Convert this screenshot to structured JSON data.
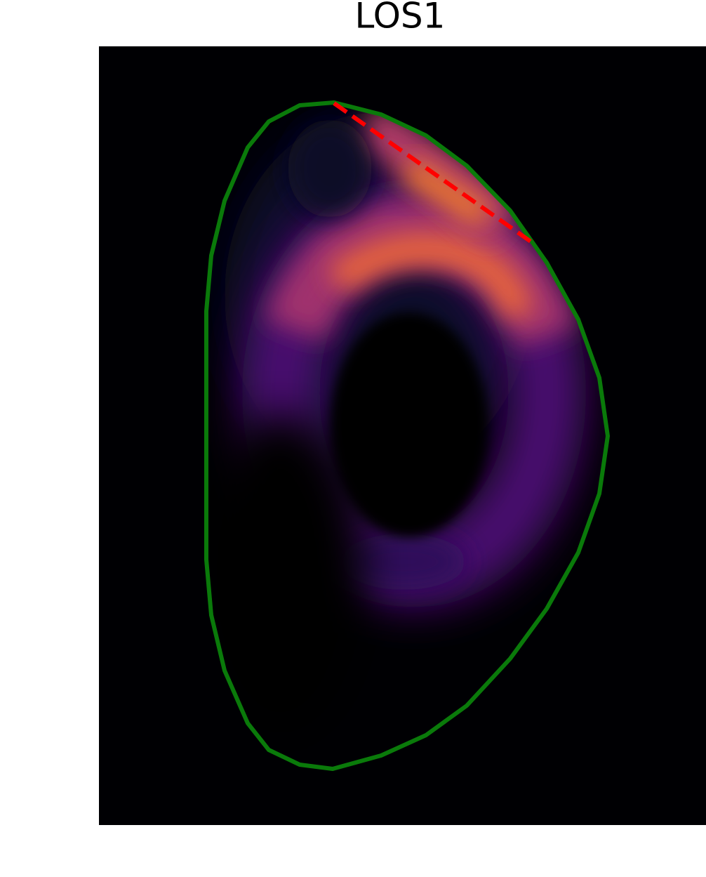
{
  "title": "LOS1"
}
